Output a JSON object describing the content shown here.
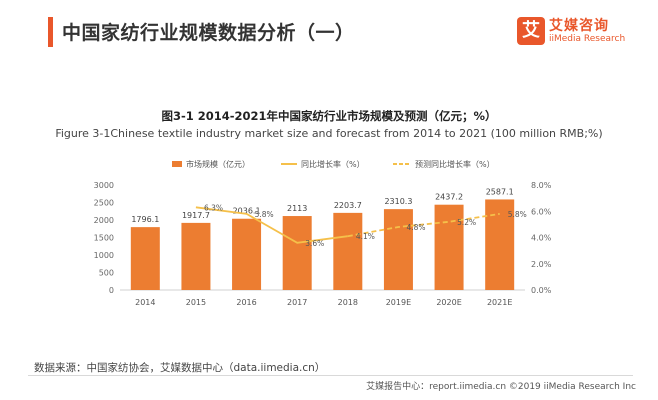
{
  "header": {
    "title": "中国家纺行业规模数据分析（一）",
    "brand_cn": "艾媒咨询",
    "brand_en": "iiMedia Research",
    "brand_glyph": "艾"
  },
  "figure": {
    "title_cn": "图3-1 2014-2021年中国家纺行业市场规模及预测（亿元；%）",
    "title_en": "Figure  3-1Chinese textile industry market size and forecast from 2014 to 2021 (100 million RMB;%)"
  },
  "colors": {
    "accent": "#e9572b",
    "bar": "#ec7d31",
    "line": "#f5c04a"
  },
  "chart_data": {
    "type": "bar",
    "categories": [
      "2014",
      "2015",
      "2016",
      "2017",
      "2018",
      "2019E",
      "2020E",
      "2021E"
    ],
    "series": [
      {
        "name": "市场规模（亿元）",
        "type": "bar",
        "axis": "left",
        "values": [
          1796.1,
          1917.7,
          2036.1,
          2113,
          2203.7,
          2310.3,
          2437.2,
          2587.1
        ],
        "labels": [
          "1796.1",
          "1917.7",
          "2036.1",
          "2113",
          "2203.7",
          "2310.3",
          "2437.2",
          "2587.1"
        ]
      },
      {
        "name": "同比增长率（%）",
        "type": "line",
        "axis": "right",
        "values": [
          null,
          6.3,
          5.8,
          3.6,
          4.1,
          null,
          null,
          null
        ],
        "labels": [
          null,
          "6.3%",
          "5.8%",
          "3.6%",
          "4.1%",
          null,
          null,
          null
        ]
      },
      {
        "name": "预测同比增长率（%）",
        "type": "line-dashed",
        "axis": "right",
        "values": [
          null,
          null,
          null,
          null,
          4.1,
          4.8,
          5.2,
          5.8
        ],
        "labels": [
          null,
          null,
          null,
          null,
          null,
          "4.8%",
          "5.2%",
          "5.8%"
        ]
      }
    ],
    "y_left": {
      "min": 0,
      "max": 3000,
      "ticks": [
        "0",
        "500",
        "1000",
        "1500",
        "2000",
        "2500",
        "3000"
      ]
    },
    "y_right": {
      "min": 0,
      "max": 8,
      "ticks": [
        "0.0%",
        "2.0%",
        "4.0%",
        "6.0%",
        "8.0%"
      ]
    },
    "grid": false,
    "legend_position": "top"
  },
  "footer": {
    "source": "数据来源：中国家纺协会，艾媒数据中心（data.iimedia.cn）",
    "copyright": "艾媒报告中心：report.iimedia.cn  ©2019  iiMedia Research  Inc"
  }
}
